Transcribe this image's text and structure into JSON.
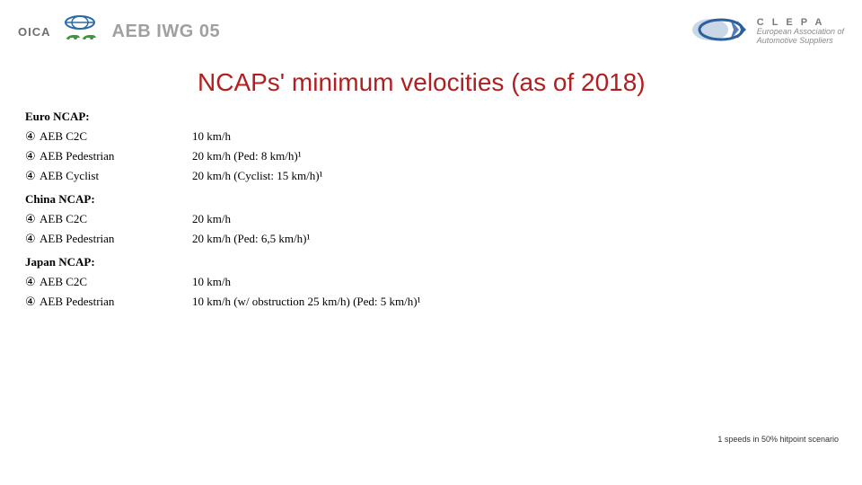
{
  "header": {
    "oica_label": "OICA",
    "doc_code": "AEB IWG 05",
    "clepa_name": "C L E P A",
    "clepa_sub1": "European Association of",
    "clepa_sub2": "Automotive Suppliers"
  },
  "title": "NCAPs' minimum velocities (as of 2018)",
  "sections": [
    {
      "heading": "Euro NCAP:",
      "rows": [
        {
          "label": "AEB C2C",
          "value": "10 km/h"
        },
        {
          "label": "AEB Pedestrian",
          "value": "20 km/h (Ped: 8 km/h)¹"
        },
        {
          "label": "AEB Cyclist",
          "value": "20 km/h (Cyclist: 15 km/h)¹"
        }
      ]
    },
    {
      "heading": "China NCAP:",
      "rows": [
        {
          "label": "AEB C2C",
          "value": "20 km/h"
        },
        {
          "label": "AEB Pedestrian",
          "value": "20 km/h (Ped: 6,5 km/h)¹"
        }
      ]
    },
    {
      "heading": "Japan NCAP:",
      "rows": [
        {
          "label": "AEB C2C",
          "value": "10 km/h"
        },
        {
          "label": "AEB Pedestrian",
          "value": "10 km/h (w/ obstruction 25 km/h) (Ped: 5 km/h)¹"
        }
      ]
    }
  ],
  "footnote": "1 speeds in 50% hitpoint scenario",
  "colors": {
    "title": "#b02020",
    "doc_code": "#a0a0a0",
    "oica_blue": "#2a6aa8",
    "oica_green": "#3a9a3a",
    "clepa_blue": "#2b5fa0",
    "text": "#000000",
    "bg": "#ffffff"
  },
  "bullet_glyph": "④"
}
